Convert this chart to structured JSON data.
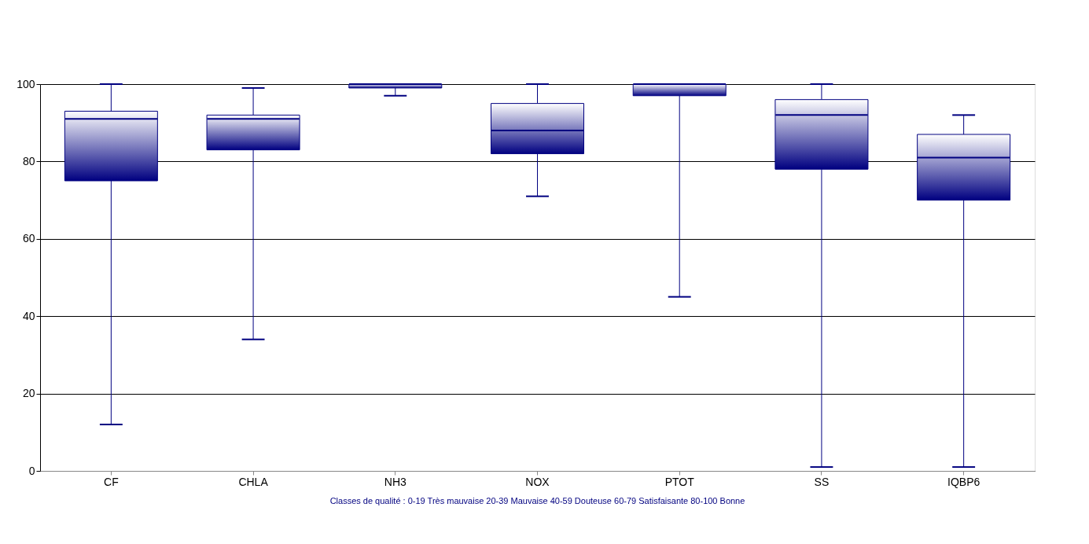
{
  "chart_data": {
    "type": "box",
    "categories": [
      "CF",
      "CHLA",
      "NH3",
      "NOX",
      "PTOT",
      "SS",
      "IQBP6"
    ],
    "series": [
      {
        "color": "#000080",
        "boxes": [
          {
            "low": 12,
            "q1": 75,
            "median": 91,
            "q3": 93,
            "high": 100
          },
          {
            "low": 34,
            "q1": 83,
            "median": 91,
            "q3": 92,
            "high": 99
          },
          {
            "low": 97,
            "q1": 99,
            "median": 100,
            "q3": 100,
            "high": 100
          },
          {
            "low": 71,
            "q1": 82,
            "median": 88,
            "q3": 95,
            "high": 100
          },
          {
            "low": 45,
            "q1": 97,
            "median": 100,
            "q3": 100,
            "high": 100
          },
          {
            "low": 1,
            "q1": 78,
            "median": 92,
            "q3": 96,
            "high": 100
          },
          {
            "low": 1,
            "q1": 70,
            "median": 81,
            "q3": 87,
            "high": 92
          }
        ]
      }
    ],
    "ylim": [
      0,
      100
    ],
    "yticks": [
      0,
      20,
      40,
      60,
      80,
      100
    ],
    "grid": "y",
    "annotations": [
      "Classes de qualité :   0-19 Très mauvaise    20-39 Mauvaise    40-59 Douteuse    60-79 Satisfaisante    80-100 Bonne"
    ]
  }
}
